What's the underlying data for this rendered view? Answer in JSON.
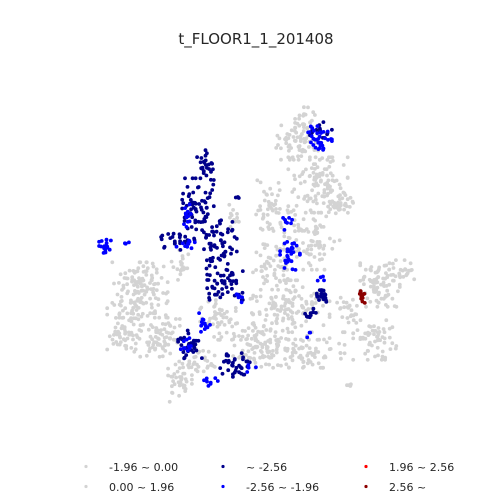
{
  "chart_data": {
    "type": "scatter",
    "title": "t_FLOOR1_1_201408",
    "xlabel": "",
    "ylabel": "",
    "axes": "hidden",
    "grid": false,
    "legend_position": "bottom",
    "legend": [
      {
        "label": "-1.96 ~ 0.00",
        "color": "#d3d3d3"
      },
      {
        "label": "~ -2.56",
        "color": "#00008b"
      },
      {
        "label": "1.96 ~ 2.56",
        "color": "#ff0000"
      },
      {
        "label": "0.00 ~ 1.96",
        "color": "#d3d3d3"
      },
      {
        "label": "-2.56 ~ -1.96",
        "color": "#0000ff"
      },
      {
        "label": "2.56 ~",
        "color": "#8b0000"
      }
    ],
    "series": [
      {
        "name": "-1.96 ~ 0.00",
        "color": "#d3d3d3",
        "clusters": [
          {
            "cx": 298,
            "cy": 142,
            "rx": 22,
            "ry": 18,
            "n": 75
          },
          {
            "cx": 305,
            "cy": 118,
            "rx": 10,
            "ry": 12,
            "n": 20
          },
          {
            "cx": 318,
            "cy": 185,
            "rx": 30,
            "ry": 28,
            "n": 110
          },
          {
            "cx": 342,
            "cy": 205,
            "rx": 14,
            "ry": 10,
            "n": 30
          },
          {
            "cx": 312,
            "cy": 240,
            "rx": 28,
            "ry": 30,
            "n": 85
          },
          {
            "cx": 270,
            "cy": 215,
            "rx": 14,
            "ry": 35,
            "n": 55
          },
          {
            "cx": 270,
            "cy": 270,
            "rx": 18,
            "ry": 20,
            "n": 40
          },
          {
            "cx": 290,
            "cy": 310,
            "rx": 40,
            "ry": 30,
            "n": 140
          },
          {
            "cx": 300,
            "cy": 350,
            "rx": 45,
            "ry": 18,
            "n": 100
          },
          {
            "cx": 255,
            "cy": 345,
            "rx": 22,
            "ry": 22,
            "n": 70
          },
          {
            "cx": 380,
            "cy": 285,
            "rx": 20,
            "ry": 22,
            "n": 85
          },
          {
            "cx": 405,
            "cy": 270,
            "rx": 12,
            "ry": 10,
            "n": 18
          },
          {
            "cx": 375,
            "cy": 340,
            "rx": 22,
            "ry": 20,
            "n": 60
          },
          {
            "cx": 345,
            "cy": 310,
            "rx": 12,
            "ry": 15,
            "n": 25
          },
          {
            "cx": 140,
            "cy": 290,
            "rx": 28,
            "ry": 28,
            "n": 130
          },
          {
            "cx": 125,
            "cy": 330,
            "rx": 18,
            "ry": 22,
            "n": 65
          },
          {
            "cx": 160,
            "cy": 335,
            "rx": 20,
            "ry": 22,
            "n": 70
          },
          {
            "cx": 180,
            "cy": 265,
            "rx": 10,
            "ry": 15,
            "n": 20
          },
          {
            "cx": 180,
            "cy": 380,
            "rx": 12,
            "ry": 22,
            "n": 40
          },
          {
            "cx": 218,
            "cy": 320,
            "rx": 18,
            "ry": 20,
            "n": 50
          },
          {
            "cx": 200,
            "cy": 360,
            "rx": 15,
            "ry": 12,
            "n": 30
          },
          {
            "cx": 235,
            "cy": 215,
            "rx": 8,
            "ry": 12,
            "n": 12
          },
          {
            "cx": 350,
            "cy": 385,
            "rx": 5,
            "ry": 5,
            "n": 4
          }
        ]
      },
      {
        "name": "~ -2.56",
        "color": "#00008b",
        "clusters": [
          {
            "cx": 205,
            "cy": 165,
            "rx": 8,
            "ry": 15,
            "n": 25
          },
          {
            "cx": 198,
            "cy": 210,
            "rx": 16,
            "ry": 32,
            "n": 75
          },
          {
            "cx": 175,
            "cy": 240,
            "rx": 14,
            "ry": 10,
            "n": 20
          },
          {
            "cx": 220,
            "cy": 245,
            "rx": 18,
            "ry": 25,
            "n": 55
          },
          {
            "cx": 225,
            "cy": 285,
            "rx": 18,
            "ry": 15,
            "n": 50
          },
          {
            "cx": 190,
            "cy": 345,
            "rx": 12,
            "ry": 15,
            "n": 35
          },
          {
            "cx": 235,
            "cy": 365,
            "rx": 15,
            "ry": 12,
            "n": 35
          },
          {
            "cx": 323,
            "cy": 296,
            "rx": 8,
            "ry": 6,
            "n": 22
          },
          {
            "cx": 310,
            "cy": 315,
            "rx": 6,
            "ry": 8,
            "n": 10
          },
          {
            "cx": 320,
            "cy": 130,
            "rx": 12,
            "ry": 8,
            "n": 15
          },
          {
            "cx": 238,
            "cy": 200,
            "rx": 3,
            "ry": 3,
            "n": 3
          }
        ]
      },
      {
        "name": "-2.56 ~ -1.96",
        "color": "#0000ff",
        "clusters": [
          {
            "cx": 320,
            "cy": 138,
            "rx": 12,
            "ry": 12,
            "n": 35
          },
          {
            "cx": 105,
            "cy": 245,
            "rx": 6,
            "ry": 8,
            "n": 18
          },
          {
            "cx": 188,
            "cy": 215,
            "rx": 6,
            "ry": 12,
            "n": 12
          },
          {
            "cx": 185,
            "cy": 245,
            "rx": 10,
            "ry": 6,
            "n": 10
          },
          {
            "cx": 290,
            "cy": 255,
            "rx": 10,
            "ry": 15,
            "n": 30
          },
          {
            "cx": 288,
            "cy": 222,
            "rx": 5,
            "ry": 8,
            "n": 8
          },
          {
            "cx": 205,
            "cy": 325,
            "rx": 6,
            "ry": 12,
            "n": 12
          },
          {
            "cx": 185,
            "cy": 345,
            "rx": 6,
            "ry": 12,
            "n": 10
          },
          {
            "cx": 210,
            "cy": 380,
            "rx": 8,
            "ry": 6,
            "n": 8
          },
          {
            "cx": 240,
            "cy": 300,
            "rx": 5,
            "ry": 8,
            "n": 6
          },
          {
            "cx": 250,
            "cy": 368,
            "rx": 6,
            "ry": 4,
            "n": 4
          },
          {
            "cx": 320,
            "cy": 280,
            "rx": 6,
            "ry": 4,
            "n": 4
          },
          {
            "cx": 308,
            "cy": 335,
            "rx": 4,
            "ry": 4,
            "n": 3
          },
          {
            "cx": 126,
            "cy": 244,
            "rx": 5,
            "ry": 4,
            "n": 4
          }
        ]
      },
      {
        "name": "1.96 ~ 2.56",
        "color": "#ff0000",
        "clusters": []
      },
      {
        "name": "2.56 ~",
        "color": "#8b0000",
        "clusters": [
          {
            "cx": 362,
            "cy": 297,
            "rx": 3,
            "ry": 6,
            "n": 14
          }
        ]
      }
    ]
  }
}
